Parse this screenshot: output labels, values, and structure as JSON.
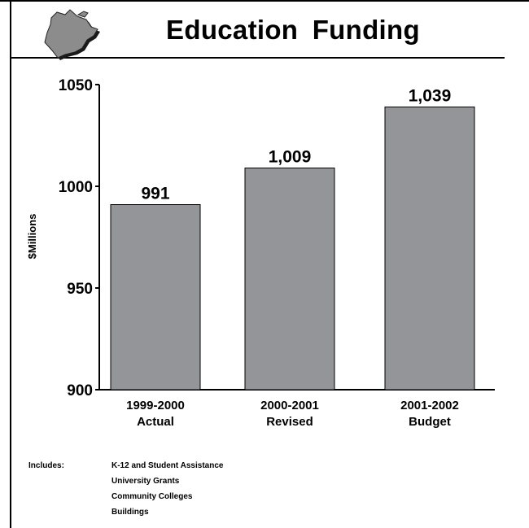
{
  "colors": {
    "bar": "#939598",
    "bar_stroke": "#000000",
    "text": "#000000",
    "map_fill": "#8c8c8c",
    "map_shadow": "#1a1a1a"
  },
  "chart_data": {
    "type": "bar",
    "title": "Education  Funding",
    "ylabel": "$Millions",
    "xlabel": "",
    "ylim": [
      900,
      1050
    ],
    "y_ticks": [
      "1050",
      "1000",
      "950",
      "900"
    ],
    "grid": false,
    "categories": [
      [
        "1999-2000",
        "Actual"
      ],
      [
        "2000-2001",
        "Revised"
      ],
      [
        "2001-2002",
        "Budget"
      ]
    ],
    "values": [
      991,
      1009,
      1039
    ],
    "data_labels": [
      "991",
      "1,009",
      "1,039"
    ]
  },
  "notes": {
    "label": "Includes:",
    "items": [
      "K-12 and Student Assistance",
      "University Grants",
      "Community Colleges",
      "Buildings"
    ]
  }
}
